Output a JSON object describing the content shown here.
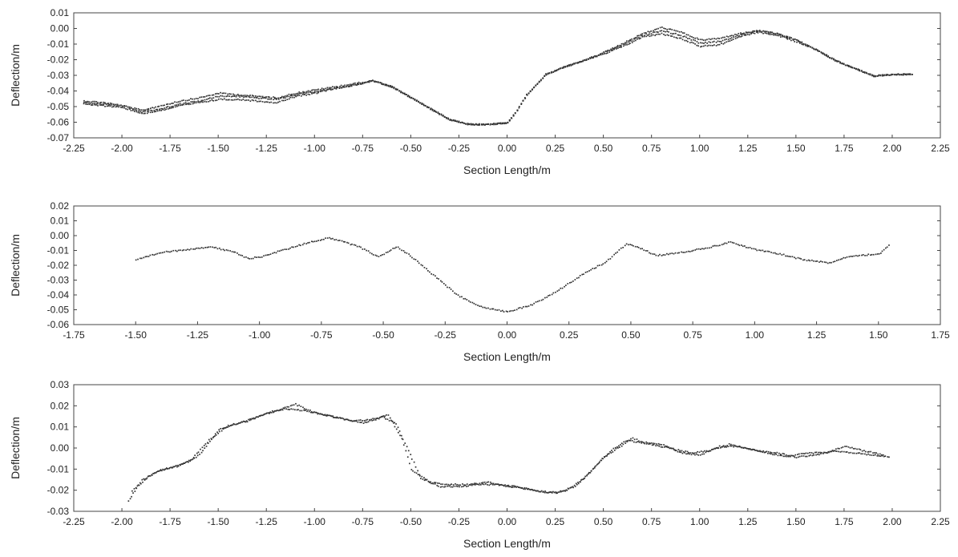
{
  "chart_data": [
    {
      "type": "scatter",
      "xlabel": "Section Length/m",
      "ylabel": "Deflection/m",
      "xlim": [
        -2.25,
        2.25
      ],
      "ylim": [
        -0.07,
        0.01
      ],
      "xticks": [
        -2.25,
        -2.0,
        -1.75,
        -1.5,
        -1.25,
        -1.0,
        -0.75,
        -0.5,
        -0.25,
        0.0,
        0.25,
        0.5,
        0.75,
        1.0,
        1.25,
        1.5,
        1.75,
        2.0,
        2.25
      ],
      "xtick_labels": [
        "-2.25",
        "-2.00",
        "-1.75",
        "-1.50",
        "-1.25",
        "-1.00",
        "-0.75",
        "-0.50",
        "-0.25",
        "0.00",
        "0.25",
        "0.50",
        "0.75",
        "1.00",
        "1.25",
        "1.50",
        "1.75",
        "2.00",
        "2.25"
      ],
      "yticks": [
        -0.07,
        -0.06,
        -0.05,
        -0.04,
        -0.03,
        -0.02,
        -0.01,
        0.0,
        0.01
      ],
      "ytick_labels": [
        "-0.07",
        "-0.06",
        "-0.05",
        "-0.04",
        "-0.03",
        "-0.02",
        "-0.01",
        "0.00",
        "0.01"
      ],
      "grid": false,
      "marker_color": "#333333",
      "series": [
        {
          "x": [
            -2.2,
            -2.1,
            -2.0,
            -1.9,
            -1.8,
            -1.7,
            -1.6,
            -1.5,
            -1.4,
            -1.3,
            -1.2,
            -1.1,
            -1.0,
            -0.9,
            -0.8,
            -0.7,
            -0.6,
            -0.5,
            -0.4,
            -0.3,
            -0.2,
            -0.1,
            0.0,
            0.05,
            0.1,
            0.2,
            0.3,
            0.4,
            0.5,
            0.6,
            0.7,
            0.8,
            0.9,
            1.0,
            1.1,
            1.2,
            1.3,
            1.4,
            1.5,
            1.6,
            1.7,
            1.8,
            1.9,
            2.0,
            2.1
          ],
          "y": [
            -0.046,
            -0.047,
            -0.049,
            -0.052,
            -0.049,
            -0.046,
            -0.044,
            -0.041,
            -0.042,
            -0.043,
            -0.044,
            -0.041,
            -0.039,
            -0.037,
            -0.035,
            -0.033,
            -0.037,
            -0.044,
            -0.051,
            -0.058,
            -0.061,
            -0.061,
            -0.06,
            -0.052,
            -0.042,
            -0.029,
            -0.024,
            -0.02,
            -0.015,
            -0.009,
            -0.003,
            0.001,
            -0.002,
            -0.007,
            -0.006,
            -0.003,
            -0.001,
            -0.003,
            -0.007,
            -0.013,
            -0.02,
            -0.025,
            -0.03,
            -0.029,
            -0.029
          ]
        },
        {
          "x": [
            -2.2,
            -2.1,
            -2.0,
            -1.9,
            -1.8,
            -1.7,
            -1.6,
            -1.5,
            -1.4,
            -1.3,
            -1.2,
            -1.1,
            -1.0,
            -0.9,
            -0.8,
            -0.7,
            -0.6,
            -0.5,
            -0.4,
            -0.3,
            -0.2,
            -0.1,
            0.0,
            0.05,
            0.1,
            0.2,
            0.3,
            0.4,
            0.5,
            0.6,
            0.7,
            0.8,
            0.9,
            1.0,
            1.1,
            1.2,
            1.3,
            1.4,
            1.5,
            1.6,
            1.7,
            1.8,
            1.9,
            2.0,
            2.1
          ],
          "y": [
            -0.047,
            -0.048,
            -0.049,
            -0.053,
            -0.051,
            -0.048,
            -0.046,
            -0.043,
            -0.043,
            -0.044,
            -0.045,
            -0.042,
            -0.04,
            -0.038,
            -0.036,
            -0.033,
            -0.037,
            -0.044,
            -0.051,
            -0.058,
            -0.061,
            -0.061,
            -0.06,
            -0.052,
            -0.042,
            -0.029,
            -0.024,
            -0.02,
            -0.015,
            -0.01,
            -0.004,
            -0.001,
            -0.004,
            -0.009,
            -0.008,
            -0.004,
            -0.001,
            -0.003,
            -0.007,
            -0.013,
            -0.02,
            -0.025,
            -0.03,
            -0.029,
            -0.029
          ]
        },
        {
          "x": [
            -2.2,
            -2.1,
            -2.0,
            -1.9,
            -1.8,
            -1.7,
            -1.6,
            -1.5,
            -1.4,
            -1.3,
            -1.2,
            -1.1,
            -1.0,
            -0.9,
            -0.8,
            -0.7,
            -0.6,
            -0.5,
            -0.4,
            -0.3,
            -0.2,
            -0.1,
            0.0,
            0.05,
            0.1,
            0.2,
            0.3,
            0.4,
            0.5,
            0.6,
            0.7,
            0.8,
            0.9,
            1.0,
            1.1,
            1.2,
            1.3,
            1.4,
            1.5,
            1.6,
            1.7,
            1.8,
            1.9,
            2.0,
            2.1
          ],
          "y": [
            -0.048,
            -0.049,
            -0.05,
            -0.054,
            -0.052,
            -0.049,
            -0.047,
            -0.045,
            -0.045,
            -0.046,
            -0.047,
            -0.043,
            -0.041,
            -0.038,
            -0.036,
            -0.033,
            -0.037,
            -0.044,
            -0.051,
            -0.058,
            -0.061,
            -0.061,
            -0.06,
            -0.052,
            -0.042,
            -0.029,
            -0.024,
            -0.02,
            -0.016,
            -0.011,
            -0.005,
            -0.003,
            -0.006,
            -0.011,
            -0.01,
            -0.005,
            -0.002,
            -0.004,
            -0.008,
            -0.013,
            -0.02,
            -0.025,
            -0.03,
            -0.029,
            -0.029
          ]
        }
      ]
    },
    {
      "type": "scatter",
      "xlabel": "Section Length/m",
      "ylabel": "Deflection/m",
      "xlim": [
        -1.75,
        1.75
      ],
      "ylim": [
        -0.06,
        0.02
      ],
      "xticks": [
        -1.75,
        -1.5,
        -1.25,
        -1.0,
        -0.75,
        -0.5,
        -0.25,
        0.0,
        0.25,
        0.5,
        0.75,
        1.0,
        1.25,
        1.5,
        1.75
      ],
      "xtick_labels": [
        "-1.75",
        "-1.50",
        "-1.25",
        "-1.00",
        "-0.75",
        "-0.50",
        "-0.25",
        "0.00",
        "0.25",
        "0.50",
        "0.75",
        "1.00",
        "1.25",
        "1.50",
        "1.75"
      ],
      "yticks": [
        -0.06,
        -0.05,
        -0.04,
        -0.03,
        -0.02,
        -0.01,
        0.0,
        0.01,
        0.02
      ],
      "ytick_labels": [
        "-0.06",
        "-0.05",
        "-0.04",
        "-0.03",
        "-0.02",
        "-0.01",
        "0.00",
        "0.01",
        "0.02"
      ],
      "grid": false,
      "marker_color": "#333333",
      "series": [
        {
          "x": [
            -1.5,
            -1.4,
            -1.3,
            -1.2,
            -1.1,
            -1.05,
            -1.0,
            -0.9,
            -0.8,
            -0.72,
            -0.6,
            -0.52,
            -0.45,
            -0.4,
            -0.3,
            -0.2,
            -0.1,
            0.0,
            0.1,
            0.2,
            0.3,
            0.4,
            0.48,
            0.55,
            0.6,
            0.7,
            0.8,
            0.9,
            1.0,
            1.1,
            1.2,
            1.3,
            1.35,
            1.4,
            1.5,
            1.54
          ],
          "y": [
            -0.016,
            -0.011,
            -0.009,
            -0.007,
            -0.011,
            -0.015,
            -0.014,
            -0.009,
            -0.004,
            -0.001,
            -0.007,
            -0.014,
            -0.007,
            -0.012,
            -0.026,
            -0.04,
            -0.048,
            -0.051,
            -0.046,
            -0.037,
            -0.026,
            -0.017,
            -0.005,
            -0.009,
            -0.013,
            -0.011,
            -0.008,
            -0.004,
            -0.009,
            -0.012,
            -0.016,
            -0.018,
            -0.015,
            -0.013,
            -0.012,
            -0.006
          ]
        }
      ]
    },
    {
      "type": "scatter",
      "xlabel": "Section Length/m",
      "ylabel": "Deflection/m",
      "xlim": [
        -2.25,
        2.25
      ],
      "ylim": [
        -0.03,
        0.03
      ],
      "xticks": [
        -2.25,
        -2.0,
        -1.75,
        -1.5,
        -1.25,
        -1.0,
        -0.75,
        -0.5,
        -0.25,
        0.0,
        0.25,
        0.5,
        0.75,
        1.0,
        1.25,
        1.5,
        1.75,
        2.0,
        2.25
      ],
      "xtick_labels": [
        "-2.25",
        "-2.00",
        "-1.75",
        "-1.50",
        "-1.25",
        "-1.00",
        "-0.75",
        "-0.50",
        "-0.25",
        "0.00",
        "0.25",
        "0.50",
        "0.75",
        "1.00",
        "1.25",
        "1.50",
        "1.75",
        "2.00",
        "2.25"
      ],
      "yticks": [
        -0.03,
        -0.02,
        -0.01,
        0.0,
        0.01,
        0.02,
        0.03
      ],
      "ytick_labels": [
        "-0.03",
        "-0.02",
        "-0.01",
        "0.00",
        "0.01",
        "0.02",
        "0.03"
      ],
      "grid": false,
      "marker_color": "#333333",
      "series": [
        {
          "x": [
            -1.97,
            -1.9,
            -1.8,
            -1.7,
            -1.6,
            -1.5,
            -1.4,
            -1.3,
            -1.2,
            -1.1,
            -1.0,
            -0.9,
            -0.8,
            -0.7,
            -0.62,
            -0.55,
            -0.5,
            -0.4,
            -0.3,
            -0.2,
            -0.1,
            0.0,
            0.1,
            0.2,
            0.3,
            0.4,
            0.5,
            0.6,
            0.65,
            0.7,
            0.8,
            0.9,
            1.0,
            1.1,
            1.2,
            1.3,
            1.4,
            1.5,
            1.6,
            1.7,
            1.8,
            1.9,
            1.98
          ],
          "y": [
            -0.025,
            -0.015,
            -0.01,
            -0.008,
            -0.003,
            0.009,
            0.012,
            0.015,
            0.018,
            0.021,
            0.017,
            0.015,
            0.013,
            0.014,
            0.016,
            0.005,
            -0.01,
            -0.016,
            -0.017,
            -0.017,
            -0.016,
            -0.018,
            -0.019,
            -0.021,
            -0.02,
            -0.014,
            -0.004,
            0.002,
            0.005,
            0.003,
            0.002,
            -0.002,
            -0.003,
            0.001,
            0.001,
            -0.001,
            -0.002,
            -0.004,
            -0.003,
            -0.001,
            -0.002,
            -0.003,
            -0.004
          ]
        },
        {
          "x": [
            -1.95,
            -1.85,
            -1.75,
            -1.65,
            -1.55,
            -1.45,
            -1.35,
            -1.25,
            -1.15,
            -1.05,
            -0.95,
            -0.85,
            -0.75,
            -0.65,
            -0.58,
            -0.45,
            -0.35,
            -0.25,
            -0.15,
            -0.05,
            0.05,
            0.15,
            0.25,
            0.35,
            0.45,
            0.55,
            0.62,
            0.75,
            0.85,
            0.95,
            1.05,
            1.15,
            1.25,
            1.35,
            1.45,
            1.55,
            1.65,
            1.75,
            1.85,
            1.95
          ],
          "y": [
            -0.02,
            -0.012,
            -0.009,
            -0.006,
            0.004,
            0.011,
            0.013,
            0.017,
            0.019,
            0.018,
            0.016,
            0.014,
            0.012,
            0.015,
            0.012,
            -0.014,
            -0.018,
            -0.018,
            -0.017,
            -0.017,
            -0.018,
            -0.02,
            -0.021,
            -0.018,
            -0.009,
            0.0,
            0.004,
            0.002,
            0.0,
            -0.002,
            -0.001,
            0.002,
            0.0,
            -0.002,
            -0.004,
            -0.002,
            -0.002,
            0.001,
            -0.001,
            -0.003
          ]
        }
      ]
    }
  ]
}
